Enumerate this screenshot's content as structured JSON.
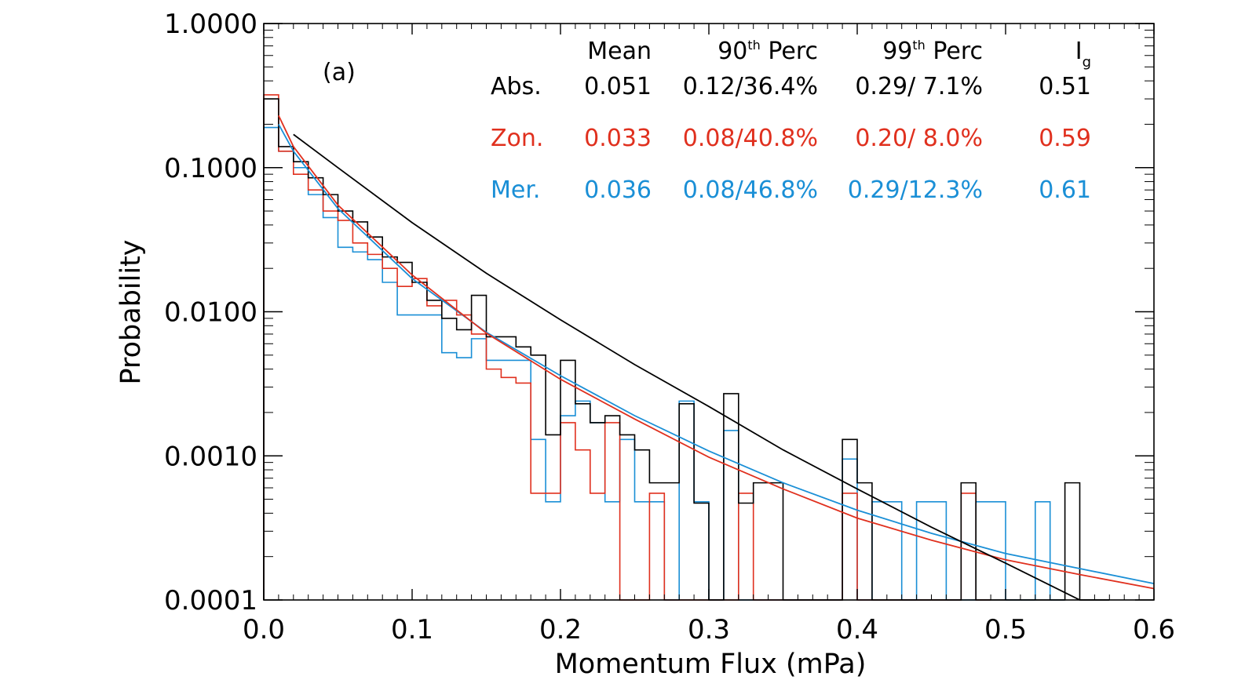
{
  "chart_data": {
    "type": "histogram",
    "panel_label": "(a)",
    "xlabel": "Momentum Flux (mPa)",
    "ylabel": "Probability",
    "xlim": [
      0.0,
      0.6
    ],
    "ylim": [
      0.0001,
      1.0
    ],
    "y_scale": "log",
    "grid": false,
    "x_ticks": [
      "0.0",
      "0.1",
      "0.2",
      "0.3",
      "0.4",
      "0.5",
      "0.6"
    ],
    "x_tick_values": [
      0.0,
      0.1,
      0.2,
      0.3,
      0.4,
      0.5,
      0.6
    ],
    "y_ticks": [
      "1.0000",
      "0.1000",
      "0.0100",
      "0.0010",
      "0.0001"
    ],
    "y_tick_values": [
      1.0,
      0.1,
      0.01,
      0.001,
      0.0001
    ],
    "bin_width": 0.01,
    "series": [
      {
        "name": "Abs.",
        "color": "#000000",
        "hist": [
          [
            0.0,
            0.3
          ],
          [
            0.01,
            0.14
          ],
          [
            0.02,
            0.11
          ],
          [
            0.03,
            0.085
          ],
          [
            0.04,
            0.065
          ],
          [
            0.05,
            0.05
          ],
          [
            0.06,
            0.042
          ],
          [
            0.07,
            0.033
          ],
          [
            0.08,
            0.024
          ],
          [
            0.09,
            0.022
          ],
          [
            0.1,
            0.016
          ],
          [
            0.11,
            0.012
          ],
          [
            0.12,
            0.009
          ],
          [
            0.13,
            0.0075
          ],
          [
            0.14,
            0.013
          ],
          [
            0.15,
            0.0067
          ],
          [
            0.16,
            0.0067
          ],
          [
            0.17,
            0.0057
          ],
          [
            0.18,
            0.005
          ],
          [
            0.19,
            0.0014
          ],
          [
            0.2,
            0.0046
          ],
          [
            0.21,
            0.0023
          ],
          [
            0.22,
            0.0017
          ],
          [
            0.23,
            0.0019
          ],
          [
            0.24,
            0.0014
          ],
          [
            0.25,
            0.0011
          ],
          [
            0.26,
            0.00065
          ],
          [
            0.27,
            0.00065
          ],
          [
            0.28,
            0.0023
          ],
          [
            0.29,
            0.00047
          ],
          [
            0.3,
            0.0001
          ],
          [
            0.31,
            0.0027
          ],
          [
            0.32,
            0.00047
          ],
          [
            0.33,
            0.00065
          ],
          [
            0.34,
            0.00065
          ],
          [
            0.35,
            0.0001
          ],
          [
            0.36,
            0.0001
          ],
          [
            0.37,
            0.0001
          ],
          [
            0.38,
            0.0001
          ],
          [
            0.39,
            0.0013
          ],
          [
            0.4,
            0.00065
          ],
          [
            0.41,
            0.0001
          ],
          [
            0.42,
            0.0001
          ],
          [
            0.43,
            0.0001
          ],
          [
            0.44,
            0.0001
          ],
          [
            0.45,
            0.0001
          ],
          [
            0.46,
            0.0001
          ],
          [
            0.47,
            0.00065
          ],
          [
            0.48,
            0.0001
          ],
          [
            0.49,
            0.0001
          ],
          [
            0.5,
            0.0001
          ],
          [
            0.51,
            0.0001
          ],
          [
            0.52,
            0.0001
          ],
          [
            0.53,
            0.0001
          ],
          [
            0.54,
            0.00065
          ]
        ],
        "fit": [
          [
            0.02,
            0.17
          ],
          [
            0.05,
            0.1
          ],
          [
            0.1,
            0.0415
          ],
          [
            0.15,
            0.0185
          ],
          [
            0.2,
            0.0088
          ],
          [
            0.25,
            0.0043
          ],
          [
            0.3,
            0.0022
          ],
          [
            0.35,
            0.0011
          ],
          [
            0.4,
            0.00059
          ],
          [
            0.45,
            0.00032
          ],
          [
            0.5,
            0.00018
          ],
          [
            0.55,
            0.0001
          ],
          [
            0.57,
            0.0001
          ]
        ]
      },
      {
        "name": "Zon.",
        "color": "#e0301e",
        "hist": [
          [
            0.0,
            0.32
          ],
          [
            0.01,
            0.13
          ],
          [
            0.02,
            0.09
          ],
          [
            0.03,
            0.07
          ],
          [
            0.04,
            0.05
          ],
          [
            0.05,
            0.043
          ],
          [
            0.06,
            0.03
          ],
          [
            0.07,
            0.025
          ],
          [
            0.08,
            0.02
          ],
          [
            0.09,
            0.015
          ],
          [
            0.1,
            0.017
          ],
          [
            0.11,
            0.011
          ],
          [
            0.12,
            0.012
          ],
          [
            0.13,
            0.0095
          ],
          [
            0.14,
            0.007
          ],
          [
            0.15,
            0.004
          ],
          [
            0.16,
            0.0035
          ],
          [
            0.17,
            0.0032
          ],
          [
            0.18,
            0.00055
          ],
          [
            0.19,
            0.00055
          ],
          [
            0.2,
            0.0017
          ],
          [
            0.21,
            0.0011
          ],
          [
            0.22,
            0.00055
          ],
          [
            0.23,
            0.0017
          ],
          [
            0.24,
            0.0001
          ],
          [
            0.25,
            0.0001
          ],
          [
            0.26,
            0.00055
          ],
          [
            0.27,
            0.0001
          ],
          [
            0.28,
            0.0001
          ],
          [
            0.29,
            0.0001
          ],
          [
            0.3,
            0.0001
          ],
          [
            0.31,
            0.0001
          ],
          [
            0.32,
            0.00055
          ],
          [
            0.33,
            0.0001
          ],
          [
            0.34,
            0.0001
          ],
          [
            0.35,
            0.0001
          ],
          [
            0.36,
            0.0001
          ],
          [
            0.37,
            0.0001
          ],
          [
            0.38,
            0.0001
          ],
          [
            0.39,
            0.00055
          ],
          [
            0.4,
            0.0001
          ],
          [
            0.41,
            0.0001
          ],
          [
            0.42,
            0.0001
          ],
          [
            0.43,
            0.0001
          ],
          [
            0.44,
            0.0001
          ],
          [
            0.45,
            0.0001
          ],
          [
            0.46,
            0.0001
          ],
          [
            0.47,
            0.00055
          ],
          [
            0.48,
            0.0001
          ]
        ],
        "fit": [
          [
            0.01,
            0.23
          ],
          [
            0.02,
            0.14
          ],
          [
            0.05,
            0.055
          ],
          [
            0.1,
            0.018
          ],
          [
            0.15,
            0.0071
          ],
          [
            0.2,
            0.0034
          ],
          [
            0.25,
            0.0018
          ],
          [
            0.3,
            0.00098
          ],
          [
            0.35,
            0.00059
          ],
          [
            0.4,
            0.00037
          ],
          [
            0.45,
            0.00026
          ],
          [
            0.5,
            0.00019
          ],
          [
            0.55,
            0.00015
          ],
          [
            0.6,
            0.00012
          ]
        ]
      },
      {
        "name": "Mer.",
        "color": "#1a8fd6",
        "hist": [
          [
            0.0,
            0.19
          ],
          [
            0.01,
            0.13
          ],
          [
            0.02,
            0.1
          ],
          [
            0.03,
            0.065
          ],
          [
            0.04,
            0.045
          ],
          [
            0.05,
            0.028
          ],
          [
            0.06,
            0.026
          ],
          [
            0.07,
            0.023
          ],
          [
            0.08,
            0.016
          ],
          [
            0.09,
            0.0095
          ],
          [
            0.1,
            0.0095
          ],
          [
            0.11,
            0.0095
          ],
          [
            0.12,
            0.0052
          ],
          [
            0.13,
            0.0048
          ],
          [
            0.14,
            0.0065
          ],
          [
            0.15,
            0.0046
          ],
          [
            0.16,
            0.0046
          ],
          [
            0.17,
            0.0046
          ],
          [
            0.18,
            0.0013
          ],
          [
            0.19,
            0.00048
          ],
          [
            0.2,
            0.0019
          ],
          [
            0.21,
            0.0024
          ],
          [
            0.22,
            0.0017
          ],
          [
            0.23,
            0.00048
          ],
          [
            0.24,
            0.0013
          ],
          [
            0.25,
            0.00048
          ],
          [
            0.26,
            0.00048
          ],
          [
            0.27,
            0.0001
          ],
          [
            0.28,
            0.0024
          ],
          [
            0.29,
            0.00048
          ],
          [
            0.3,
            0.0001
          ],
          [
            0.31,
            0.0015
          ],
          [
            0.32,
            0.0001
          ],
          [
            0.33,
            0.0001
          ],
          [
            0.34,
            0.0001
          ],
          [
            0.35,
            0.0001
          ],
          [
            0.36,
            0.0001
          ],
          [
            0.37,
            0.0001
          ],
          [
            0.38,
            0.0001
          ],
          [
            0.39,
            0.00095
          ],
          [
            0.4,
            0.0001
          ],
          [
            0.41,
            0.00048
          ],
          [
            0.42,
            0.00048
          ],
          [
            0.43,
            0.0001
          ],
          [
            0.44,
            0.00048
          ],
          [
            0.45,
            0.00048
          ],
          [
            0.46,
            0.0001
          ],
          [
            0.47,
            0.0001
          ],
          [
            0.48,
            0.00048
          ],
          [
            0.49,
            0.00048
          ],
          [
            0.5,
            0.0001
          ],
          [
            0.51,
            0.0001
          ],
          [
            0.52,
            0.00048
          ],
          [
            0.53,
            0.0001
          ]
        ],
        "fit": [
          [
            0.01,
            0.2
          ],
          [
            0.02,
            0.13
          ],
          [
            0.05,
            0.052
          ],
          [
            0.1,
            0.017
          ],
          [
            0.15,
            0.0072
          ],
          [
            0.2,
            0.0036
          ],
          [
            0.25,
            0.0019
          ],
          [
            0.3,
            0.00108
          ],
          [
            0.35,
            0.00065
          ],
          [
            0.4,
            0.00042
          ],
          [
            0.45,
            0.00029
          ],
          [
            0.5,
            0.00021
          ],
          [
            0.55,
            0.000165
          ],
          [
            0.6,
            0.00013
          ]
        ]
      }
    ],
    "stats_table": {
      "headers": [
        "Mean",
        "90",
        "th",
        " Perc",
        "99",
        "th",
        " Perc",
        "I",
        "g"
      ],
      "columns": [
        {
          "key": "mean",
          "label": "Mean"
        },
        {
          "key": "p90",
          "base": "90",
          "sup": "th",
          "rest": " Perc"
        },
        {
          "key": "p99",
          "base": "99",
          "sup": "th",
          "rest": " Perc"
        },
        {
          "key": "ig",
          "base": "I",
          "sub": "g"
        }
      ],
      "rows": [
        {
          "label": "Abs.",
          "mean": "0.051",
          "p90": "0.12/36.4%",
          "p99": "0.29/ 7.1%",
          "ig": "0.51",
          "color": "#000000"
        },
        {
          "label": "Zon.",
          "mean": "0.033",
          "p90": "0.08/40.8%",
          "p99": "0.20/ 8.0%",
          "ig": "0.59",
          "color": "#e0301e"
        },
        {
          "label": "Mer.",
          "mean": "0.036",
          "p90": "0.08/46.8%",
          "p99": "0.29/12.3%",
          "ig": "0.61",
          "color": "#1a8fd6"
        }
      ]
    }
  }
}
